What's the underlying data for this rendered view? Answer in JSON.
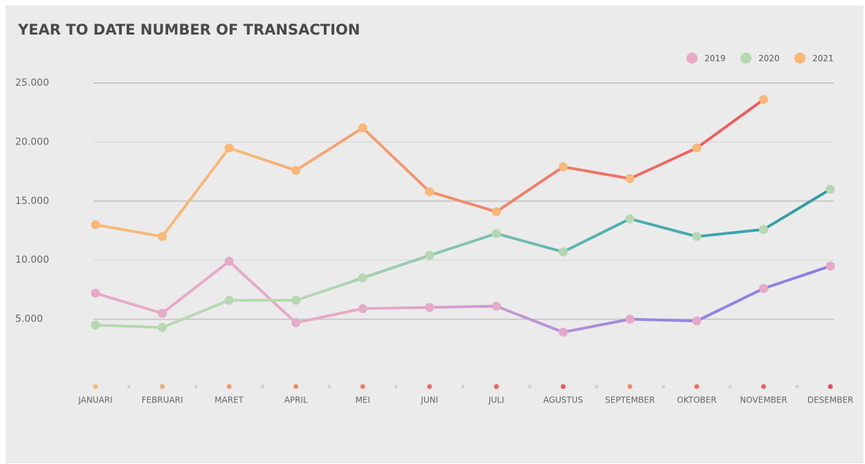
{
  "chart_data": {
    "type": "line",
    "title": "YEAR TO DATE NUMBER OF TRANSACTION",
    "categories": [
      "JANUARI",
      "FEBRUARI",
      "MARET",
      "APRIL",
      "MEI",
      "JUNI",
      "JULI",
      "AGUSTUS",
      "SEPTEMBER",
      "OKTOBER",
      "NOVEMBER",
      "DESEMBER"
    ],
    "series": [
      {
        "name": "2019",
        "color": "#e6aac8",
        "values": [
          7200,
          5500,
          9900,
          4700,
          5900,
          6000,
          6100,
          3900,
          5000,
          4850,
          7600,
          9500
        ]
      },
      {
        "name": "2020",
        "color": "#b5d8b0",
        "values": [
          4500,
          4300,
          6600,
          6600,
          8500,
          10400,
          12250,
          10700,
          13500,
          12000,
          12600,
          16000
        ]
      },
      {
        "name": "2021",
        "color": "#f8b878",
        "values": [
          13000,
          12000,
          19500,
          17600,
          21200,
          15800,
          14100,
          17900,
          16900,
          19500,
          23600,
          null
        ]
      }
    ],
    "ylim": [
      0,
      25000
    ],
    "yticks": [
      {
        "value": 5000,
        "label": "5.000"
      },
      {
        "value": 10000,
        "label": "10.000"
      },
      {
        "value": 15000,
        "label": "15.000"
      },
      {
        "value": 20000,
        "label": "20.000"
      },
      {
        "value": 25000,
        "label": "25.000"
      }
    ],
    "grid": true,
    "legend": "top-right"
  }
}
